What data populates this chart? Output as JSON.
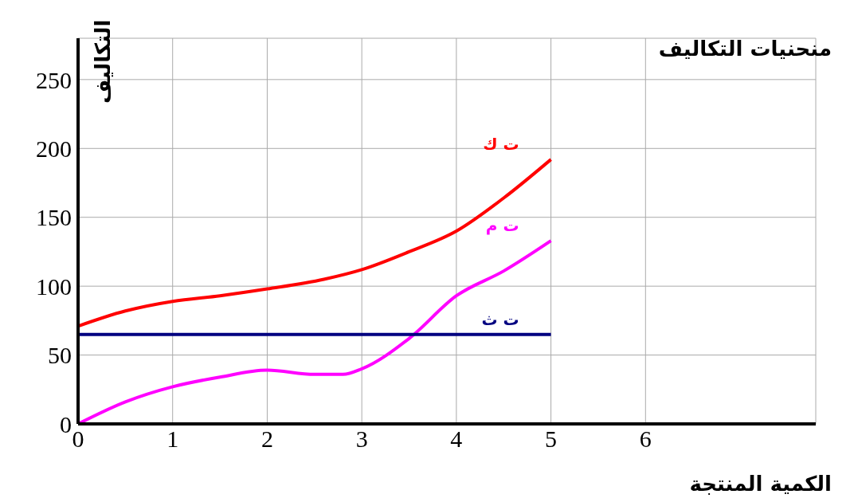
{
  "chart_data": {
    "type": "line",
    "title": "منحنيات التكاليف",
    "xlabel": "الكمية المنتجة",
    "ylabel": "التكاليف",
    "xlim": [
      0,
      7.8
    ],
    "xticks": [
      0,
      1,
      2,
      3,
      4,
      5,
      6
    ],
    "ylim": [
      0,
      280
    ],
    "yticks": [
      0,
      50,
      100,
      150,
      200,
      250
    ],
    "grid": true,
    "marker": "none",
    "line_style": "solid",
    "series": [
      {
        "name": "ت ك",
        "color": "#ff0000",
        "x": [
          0,
          0.5,
          1,
          1.5,
          2,
          2.6,
          3,
          3.5,
          4,
          4.5,
          5
        ],
        "values": [
          71,
          82,
          89,
          93,
          98,
          105,
          112,
          125,
          140,
          164,
          192
        ]
      },
      {
        "name": "ت م",
        "color": "#ff00ff",
        "x": [
          0,
          0.5,
          1,
          1.5,
          2,
          2.5,
          2.8,
          3,
          3.5,
          4,
          4.5,
          5
        ],
        "values": [
          0,
          16,
          27,
          34,
          39,
          36,
          36,
          40,
          62,
          93,
          111,
          133
        ]
      },
      {
        "name": "ت ث",
        "color": "#000080",
        "x": [
          0,
          5
        ],
        "values": [
          65,
          65
        ]
      }
    ]
  }
}
